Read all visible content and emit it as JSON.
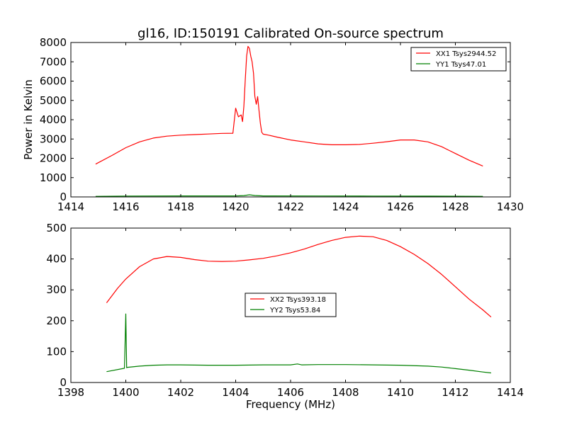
{
  "chart_data": [
    {
      "type": "line",
      "title": "gl16, ID:150191 Calibrated On-source spectrum",
      "xlabel": "",
      "ylabel": "Power in Kelvin",
      "xlim": [
        1414,
        1430
      ],
      "ylim": [
        0,
        8000
      ],
      "xticks": [
        1414,
        1416,
        1418,
        1420,
        1422,
        1424,
        1426,
        1428,
        1430
      ],
      "yticks": [
        0,
        1000,
        2000,
        3000,
        4000,
        5000,
        6000,
        7000,
        8000
      ],
      "xtick_labels": [
        "1414",
        "1416",
        "1418",
        "1420",
        "1422",
        "1424",
        "1426",
        "1428",
        "1430"
      ],
      "ytick_labels": [
        "0",
        "1000",
        "2000",
        "3000",
        "4000",
        "5000",
        "6000",
        "7000",
        "8000"
      ],
      "legend_position": "top-right",
      "series": [
        {
          "name": "XX1 Tsys2944.52",
          "color": "#ff0000",
          "x": [
            1414.9,
            1415.5,
            1416.0,
            1416.5,
            1417.0,
            1417.5,
            1418.0,
            1418.5,
            1419.0,
            1419.5,
            1419.9,
            1420.0,
            1420.1,
            1420.2,
            1420.25,
            1420.3,
            1420.35,
            1420.4,
            1420.45,
            1420.5,
            1420.55,
            1420.6,
            1420.65,
            1420.7,
            1420.75,
            1420.8,
            1420.85,
            1420.9,
            1420.95,
            1421.0,
            1421.2,
            1421.5,
            1422.0,
            1422.5,
            1423.0,
            1423.5,
            1424.0,
            1424.5,
            1425.0,
            1425.5,
            1426.0,
            1426.5,
            1427.0,
            1427.5,
            1428.0,
            1428.5,
            1429.0
          ],
          "values": [
            1700,
            2150,
            2550,
            2850,
            3050,
            3150,
            3200,
            3230,
            3260,
            3290,
            3300,
            4600,
            4150,
            4250,
            3900,
            4700,
            6100,
            7300,
            7800,
            7700,
            7300,
            7000,
            6400,
            5200,
            4800,
            5200,
            4500,
            3800,
            3350,
            3250,
            3200,
            3100,
            2950,
            2850,
            2750,
            2700,
            2700,
            2720,
            2780,
            2860,
            2950,
            2950,
            2850,
            2600,
            2250,
            1900,
            1600
          ]
        },
        {
          "name": "YY1 Tsys47.01",
          "color": "#008000",
          "x": [
            1414.9,
            1416.0,
            1418.0,
            1420.0,
            1420.3,
            1420.5,
            1420.7,
            1421.0,
            1423.0,
            1425.0,
            1427.0,
            1429.0
          ],
          "values": [
            30,
            45,
            50,
            52,
            70,
            110,
            75,
            50,
            48,
            45,
            40,
            30
          ]
        }
      ]
    },
    {
      "type": "line",
      "title": "",
      "xlabel": "Frequency (MHz)",
      "ylabel": "",
      "xlim": [
        1398,
        1414
      ],
      "ylim": [
        0,
        500
      ],
      "xticks": [
        1398,
        1400,
        1402,
        1404,
        1406,
        1408,
        1410,
        1412,
        1414
      ],
      "yticks": [
        0,
        100,
        200,
        300,
        400,
        500
      ],
      "xtick_labels": [
        "1398",
        "1400",
        "1402",
        "1404",
        "1406",
        "1408",
        "1410",
        "1412",
        "1414"
      ],
      "ytick_labels": [
        "0",
        "100",
        "200",
        "300",
        "400",
        "500"
      ],
      "legend_position": "center",
      "series": [
        {
          "name": "XX2 Tsys393.18",
          "color": "#ff0000",
          "x": [
            1399.3,
            1399.7,
            1400.0,
            1400.5,
            1401.0,
            1401.5,
            1402.0,
            1402.5,
            1403.0,
            1403.5,
            1404.0,
            1404.5,
            1405.0,
            1405.5,
            1406.0,
            1406.5,
            1407.0,
            1407.5,
            1408.0,
            1408.5,
            1409.0,
            1409.5,
            1410.0,
            1410.5,
            1411.0,
            1411.5,
            1412.0,
            1412.5,
            1413.0,
            1413.3
          ],
          "values": [
            258,
            305,
            335,
            375,
            400,
            408,
            405,
            398,
            393,
            392,
            393,
            397,
            402,
            410,
            420,
            432,
            447,
            460,
            470,
            474,
            472,
            460,
            440,
            415,
            385,
            350,
            310,
            270,
            235,
            212
          ]
        },
        {
          "name": "YY2 Tsys53.84",
          "color": "#008000",
          "x": [
            1399.3,
            1399.95,
            1400.0,
            1400.03,
            1400.06,
            1400.5,
            1401.0,
            1401.5,
            1402.0,
            1403.0,
            1404.0,
            1405.0,
            1406.0,
            1406.25,
            1406.4,
            1407.0,
            1408.0,
            1409.0,
            1410.0,
            1411.0,
            1411.5,
            1412.0,
            1412.5,
            1413.0,
            1413.3
          ],
          "values": [
            35,
            46,
            222,
            48,
            49,
            53,
            56,
            57,
            57,
            56,
            56,
            57,
            57,
            60,
            57,
            58,
            58,
            57,
            56,
            53,
            50,
            45,
            40,
            34,
            31
          ]
        }
      ]
    }
  ]
}
